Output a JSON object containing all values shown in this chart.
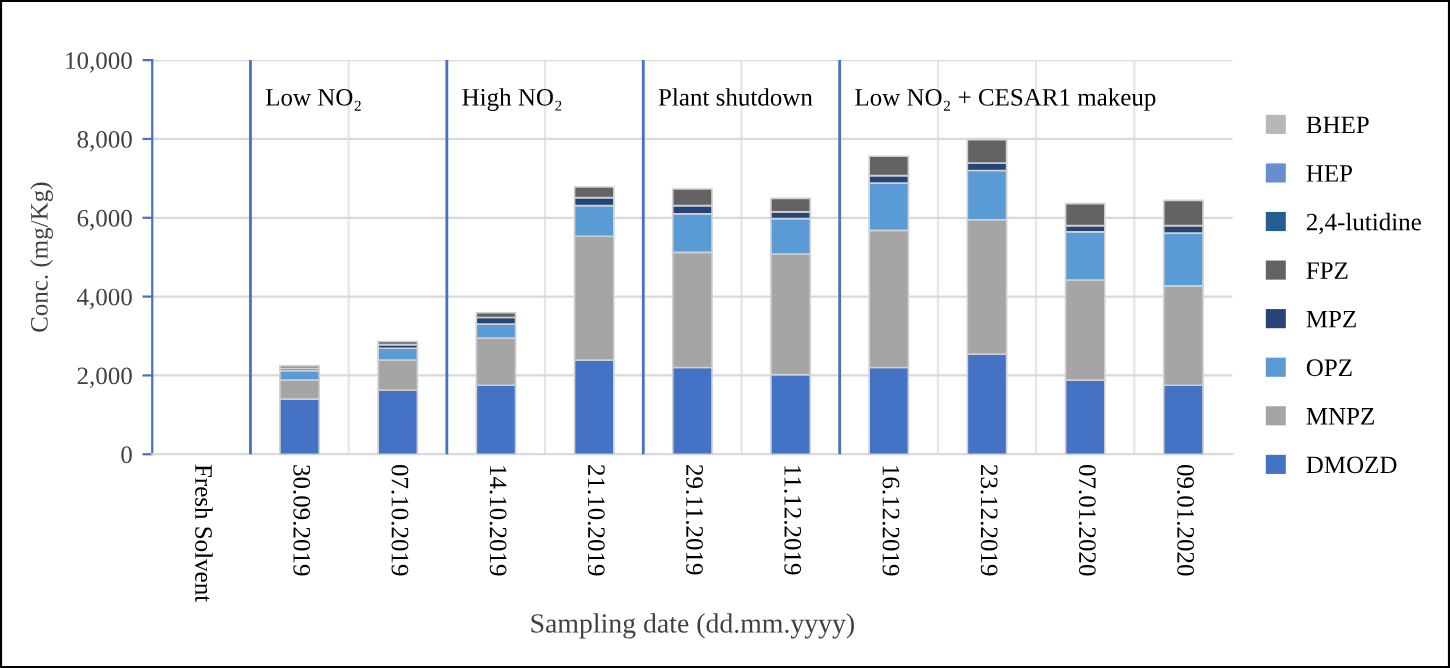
{
  "chart_data": {
    "type": "bar",
    "stacked": true,
    "xlabel": "Sampling date (dd.mm.yyyy)",
    "ylabel": "Conc. (mg/Kg)",
    "categories": [
      "Fresh Solvent",
      "30.09.2019",
      "07.10.2019",
      "14.10.2019",
      "21.10.2019",
      "29.11.2019",
      "11.12.2019",
      "16.12.2019",
      "23.12.2019",
      "07.01.2020",
      "09.01.2020"
    ],
    "series": [
      {
        "name": "DMOZD",
        "color": "#4472c4",
        "values": [
          null,
          1400,
          1630,
          1750,
          2390,
          2200,
          2020,
          2200,
          2540,
          1880,
          1750
        ]
      },
      {
        "name": "MNPZ",
        "color": "#a5a5a5",
        "values": [
          null,
          480,
          760,
          1200,
          3140,
          2920,
          3060,
          3480,
          3410,
          2540,
          2520
        ]
      },
      {
        "name": "OPZ",
        "color": "#5b9bd5",
        "values": [
          null,
          240,
          300,
          350,
          780,
          980,
          900,
          1200,
          1250,
          1220,
          1340
        ]
      },
      {
        "name": "MPZ",
        "color": "#264478",
        "values": [
          null,
          60,
          90,
          170,
          200,
          210,
          170,
          190,
          190,
          160,
          190
        ]
      },
      {
        "name": "FPZ",
        "color": "#636363",
        "values": [
          null,
          60,
          80,
          120,
          270,
          420,
          340,
          490,
          590,
          560,
          640
        ]
      },
      {
        "name": "2,4-lutidine",
        "color": "#255e91",
        "values": [
          null,
          null,
          null,
          null,
          null,
          null,
          null,
          null,
          null,
          null,
          null
        ]
      },
      {
        "name": "HEP",
        "color": "#698ed0",
        "values": [
          null,
          null,
          null,
          null,
          null,
          null,
          null,
          null,
          null,
          null,
          null
        ]
      },
      {
        "name": "BHEP",
        "color": "#b7b7b7",
        "values": [
          null,
          null,
          null,
          null,
          null,
          null,
          null,
          null,
          null,
          null,
          null
        ]
      }
    ],
    "ylim": [
      0,
      10000
    ],
    "yticks": [
      0,
      {
        "value": 2000,
        "label": "2,000"
      },
      {
        "value": 4000,
        "label": "4,000"
      },
      {
        "value": 6000,
        "label": "6,000"
      },
      {
        "value": 8000,
        "label": "8,000"
      },
      {
        "value": 10000,
        "label": "10,000"
      }
    ],
    "grid": true,
    "legend": "right",
    "annotations": [
      "Low NO₂",
      "High NO₂",
      "Plant shutdown",
      "Low NO₂ + CESAR1 makeup"
    ]
  }
}
